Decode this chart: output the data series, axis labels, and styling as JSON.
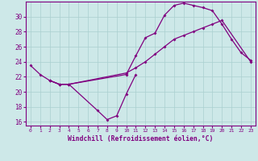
{
  "xlabel": "Windchill (Refroidissement éolien,°C)",
  "background_color": "#cde8e8",
  "line_color": "#800080",
  "grid_color": "#aacfcf",
  "xlim": [
    -0.5,
    23.5
  ],
  "ylim": [
    15.5,
    32.0
  ],
  "yticks": [
    16,
    18,
    20,
    22,
    24,
    26,
    28,
    30
  ],
  "xticks": [
    0,
    1,
    2,
    3,
    4,
    5,
    6,
    7,
    8,
    9,
    10,
    11,
    12,
    13,
    14,
    15,
    16,
    17,
    18,
    19,
    20,
    21,
    22,
    23
  ],
  "s1x": [
    0,
    1,
    2,
    3,
    4,
    10,
    11,
    12,
    13,
    14,
    15,
    16,
    17,
    18,
    19,
    20,
    23
  ],
  "s1y": [
    23.5,
    22.3,
    21.5,
    21.0,
    21.0,
    22.5,
    23.2,
    24.0,
    25.0,
    26.0,
    27.0,
    27.5,
    28.0,
    28.5,
    29.0,
    29.5,
    24.0
  ],
  "s2x": [
    2,
    3,
    4,
    10,
    11,
    12,
    13,
    14,
    15,
    16,
    17,
    18,
    19,
    20,
    21,
    22,
    23
  ],
  "s2y": [
    21.5,
    21.0,
    21.0,
    22.3,
    24.8,
    27.2,
    27.8,
    30.2,
    31.5,
    31.8,
    31.5,
    31.2,
    30.8,
    29.0,
    27.0,
    25.2,
    24.2
  ],
  "s3x": [
    2,
    3,
    4,
    7,
    8,
    9,
    10,
    11
  ],
  "s3y": [
    21.5,
    21.0,
    21.0,
    17.5,
    16.3,
    16.8,
    19.7,
    22.3
  ]
}
